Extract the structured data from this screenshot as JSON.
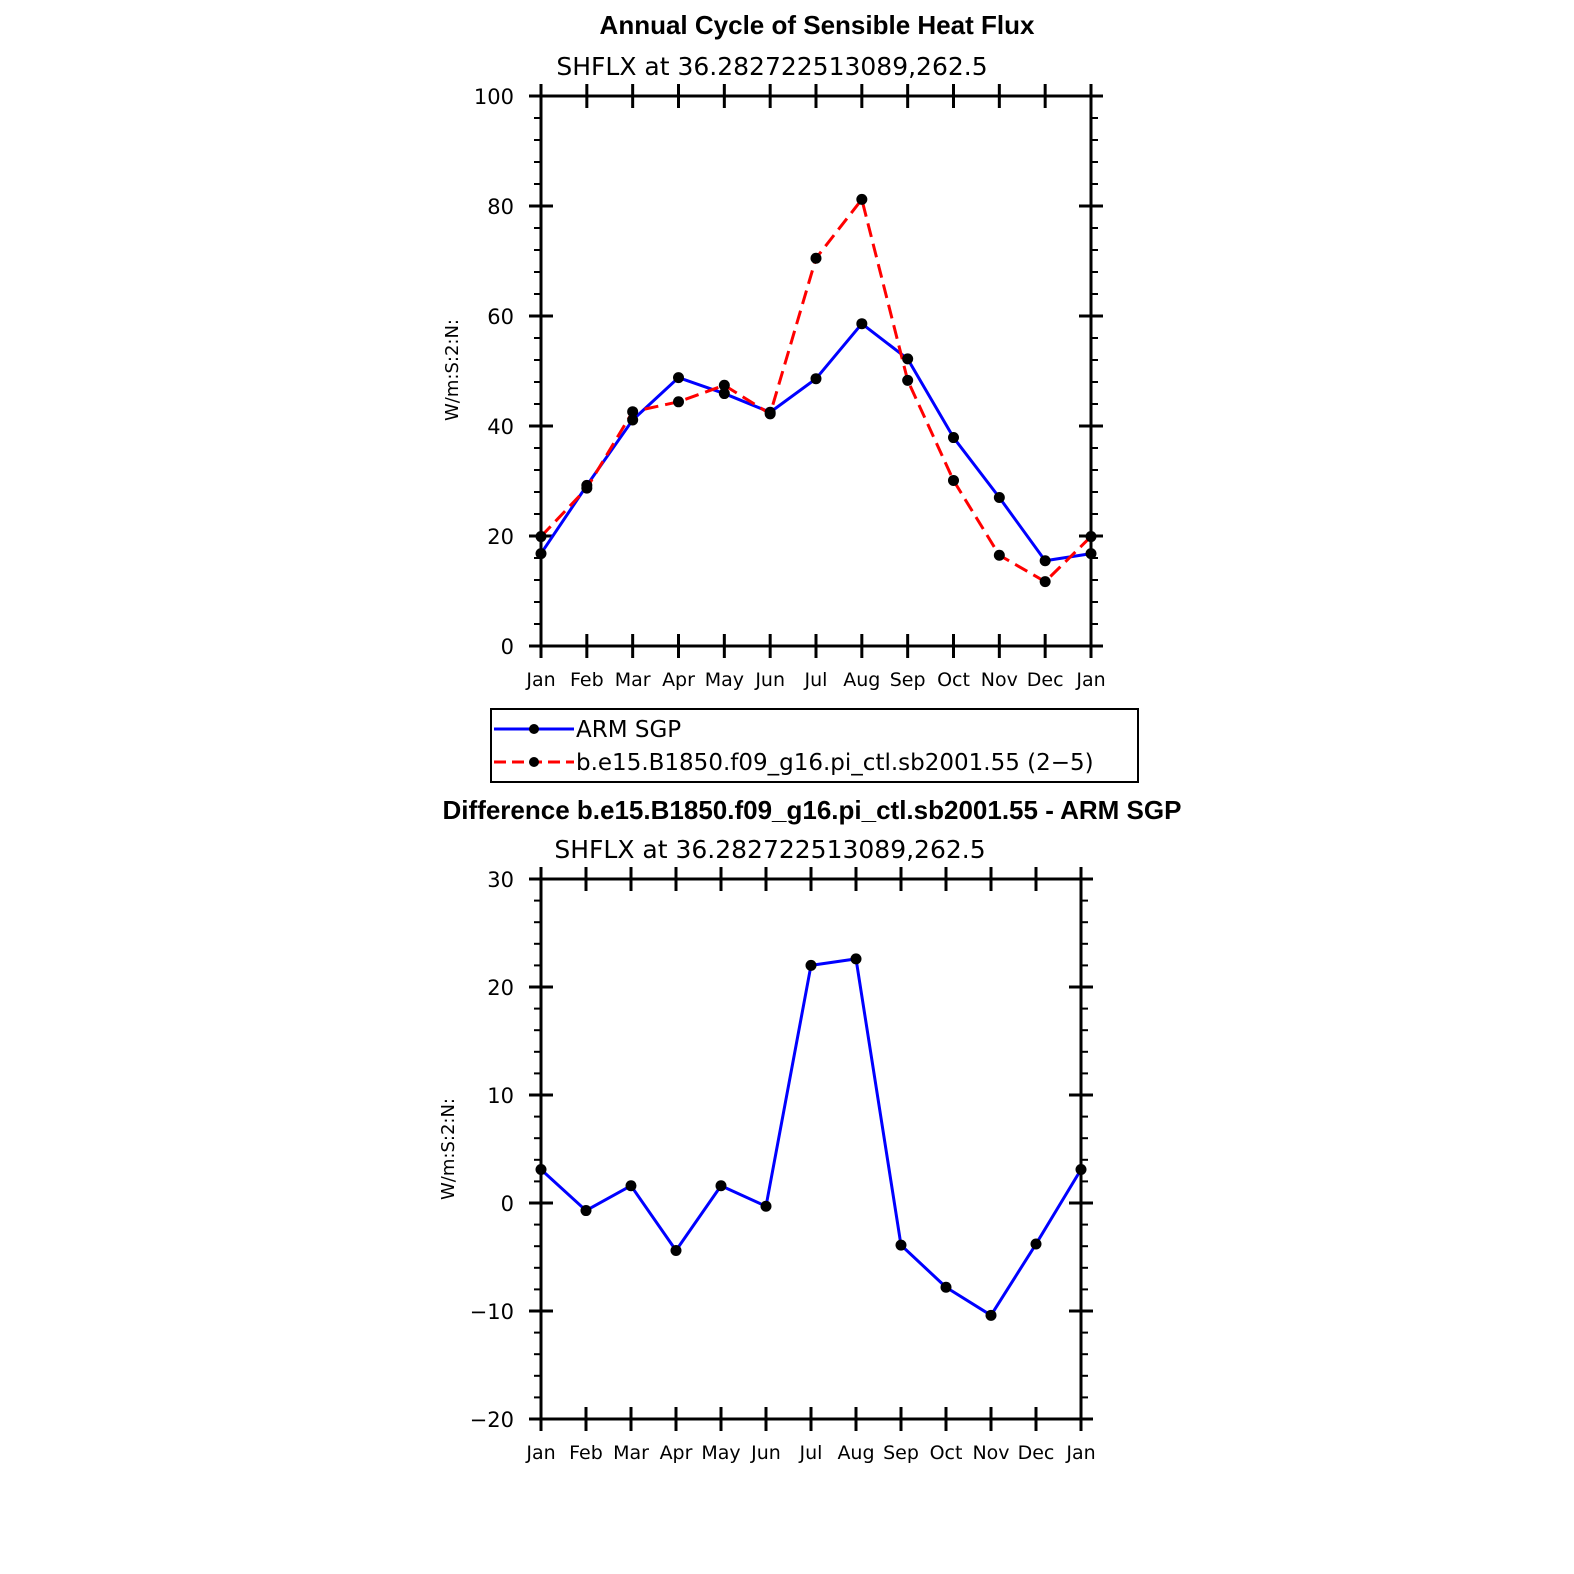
{
  "chart_data": [
    {
      "type": "line",
      "title": "Annual Cycle of Sensible Heat Flux",
      "subtitle": "SHFLX  at  36.282722513089,262.5",
      "ylabel": "W/m:S:2:N:",
      "xlabel": "",
      "ylim": [
        0,
        100
      ],
      "yticks": [
        0,
        20,
        40,
        60,
        80,
        100
      ],
      "categories": [
        "Jan",
        "Feb",
        "Mar",
        "Apr",
        "May",
        "Jun",
        "Jul",
        "Aug",
        "Sep",
        "Oct",
        "Nov",
        "Dec",
        "Jan"
      ],
      "series": [
        {
          "name": "ARM SGP",
          "color": "#0000ff",
          "style": "solid",
          "values": [
            16.8,
            29.2,
            41.1,
            48.8,
            45.9,
            42.5,
            48.6,
            58.6,
            52.2,
            37.9,
            27.0,
            15.5,
            16.8
          ]
        },
        {
          "name": "b.e15.B1850.f09_g16.pi_ctl.sb2001.55 (2−5)",
          "color": "#ff0000",
          "style": "dashed",
          "values": [
            19.9,
            28.7,
            42.6,
            44.4,
            47.4,
            42.2,
            70.5,
            81.2,
            48.3,
            30.1,
            16.5,
            11.7,
            19.9
          ]
        }
      ],
      "legend": "below"
    },
    {
      "type": "line",
      "title": "Difference b.e15.B1850.f09_g16.pi_ctl.sb2001.55 - ARM SGP",
      "subtitle": "SHFLX  at  36.282722513089,262.5",
      "ylabel": "W/m:S:2:N:",
      "xlabel": "",
      "ylim": [
        -20,
        30
      ],
      "yticks": [
        -20,
        -10,
        0,
        10,
        20,
        30
      ],
      "ytick_labels": [
        "−20",
        "−10",
        "0",
        "10",
        "20",
        "30"
      ],
      "categories": [
        "Jan",
        "Feb",
        "Mar",
        "Apr",
        "May",
        "Jun",
        "Jul",
        "Aug",
        "Sep",
        "Oct",
        "Nov",
        "Dec",
        "Jan"
      ],
      "series": [
        {
          "name": "Difference",
          "color": "#0000ff",
          "style": "solid",
          "values": [
            3.1,
            -0.7,
            1.6,
            -4.4,
            1.6,
            -0.3,
            22.0,
            22.6,
            -3.9,
            -7.8,
            -10.4,
            -3.8,
            3.1
          ]
        }
      ]
    }
  ]
}
